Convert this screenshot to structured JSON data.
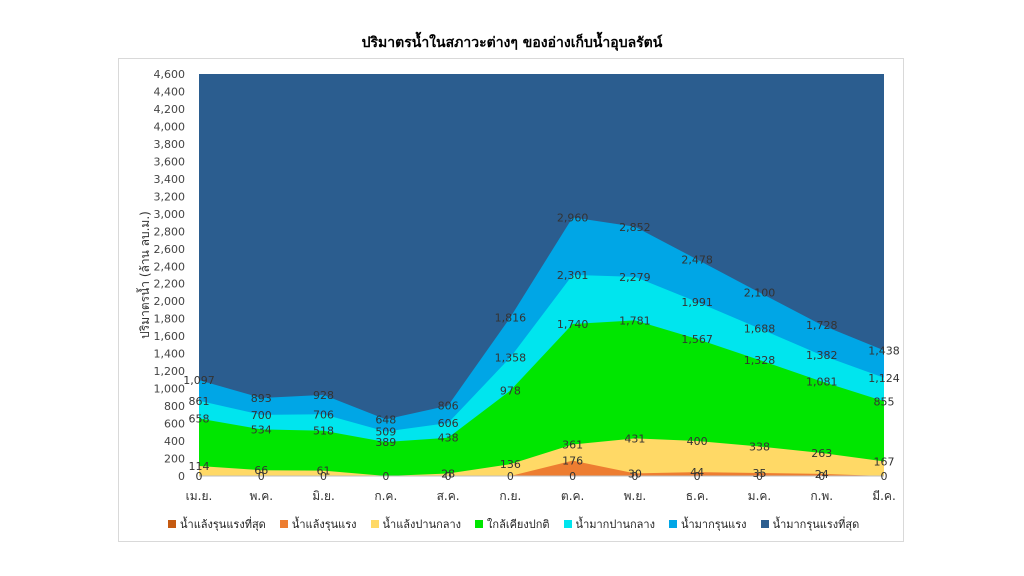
{
  "chart_data": {
    "type": "area",
    "title": "ปริมาตรน้ำในสภาวะต่างๆ ของอ่างเก็บน้ำอุบลรัตน์",
    "ylabel": "ปริมาตรน้ำ (ล้าน ลบ.ม.)",
    "xlabel": "",
    "ylim": [
      0,
      4600
    ],
    "y_ticks": [
      "0",
      "200",
      "400",
      "600",
      "800",
      "1,000",
      "1,200",
      "1,400",
      "1,600",
      "1,800",
      "2,000",
      "2,200",
      "2,400",
      "2,600",
      "2,800",
      "3,000",
      "3,200",
      "3,400",
      "3,600",
      "3,800",
      "4,000",
      "4,200",
      "4,400",
      "4,600"
    ],
    "categories": [
      "เม.ย.",
      "พ.ค.",
      "มิ.ย.",
      "ก.ค.",
      "ส.ค.",
      "ก.ย.",
      "ต.ค.",
      "พ.ย.",
      "ธ.ค.",
      "ม.ค.",
      "ก.พ.",
      "มี.ค."
    ],
    "series": [
      {
        "name": "น้ำแล้งรุนแรงที่สุด",
        "color": "#C55A11",
        "values": [
          0,
          0,
          0,
          0,
          0,
          0,
          0,
          0,
          0,
          0,
          0,
          0
        ],
        "labels": [
          "0",
          "0",
          "0",
          "0",
          "0",
          "0",
          "0",
          "0",
          "0",
          "0",
          "0",
          "0"
        ]
      },
      {
        "name": "น้ำแล้งรุนแรง",
        "color": "#ED7D31",
        "values": [
          0,
          0,
          0,
          0,
          0,
          0,
          176,
          30,
          44,
          35,
          24,
          0
        ],
        "labels": [
          "",
          "",
          "",
          "",
          "",
          "",
          "176",
          "30",
          "44",
          "35",
          "24",
          ""
        ]
      },
      {
        "name": "น้ำแล้งปานกลาง",
        "color": "#FFD966",
        "values": [
          114,
          66,
          61,
          0,
          28,
          136,
          361,
          431,
          400,
          338,
          263,
          167
        ],
        "labels": [
          "114",
          "66",
          "61",
          "",
          "28",
          "136",
          "361",
          "431",
          "400",
          "338",
          "263",
          "167"
        ]
      },
      {
        "name": "ใกล้เคียงปกติ",
        "color": "#00E600",
        "values": [
          658,
          534,
          518,
          389,
          438,
          978,
          1740,
          1781,
          1567,
          1328,
          1081,
          855
        ],
        "labels": [
          "658",
          "534",
          "518",
          "389",
          "438",
          "978",
          "1,740",
          "1,781",
          "1,567",
          "1,328",
          "1,081",
          "855"
        ]
      },
      {
        "name": "น้ำมากปานกลาง",
        "color": "#00E5EE",
        "values": [
          861,
          700,
          706,
          509,
          606,
          1358,
          2301,
          2279,
          1991,
          1688,
          1382,
          1124
        ],
        "labels": [
          "861",
          "700",
          "706",
          "509",
          "606",
          "1,358",
          "2,301",
          "2,279",
          "1,991",
          "1,688",
          "1,382",
          "1,124"
        ]
      },
      {
        "name": "น้ำมากรุนแรง",
        "color": "#00A6E6",
        "values": [
          1097,
          893,
          928,
          648,
          806,
          1816,
          2960,
          2852,
          2478,
          2100,
          1728,
          1438
        ],
        "labels": [
          "1,097",
          "893",
          "928",
          "648",
          "806",
          "1,816",
          "2,960",
          "2,852",
          "2,478",
          "2,100",
          "1,728",
          "1,438"
        ]
      },
      {
        "name": "น้ำมากรุนแรงที่สุด",
        "color": "#2B5D8F",
        "values": [
          4600,
          4600,
          4600,
          4600,
          4600,
          4600,
          4600,
          4600,
          4600,
          4600,
          4600,
          4600
        ],
        "labels": []
      }
    ]
  }
}
